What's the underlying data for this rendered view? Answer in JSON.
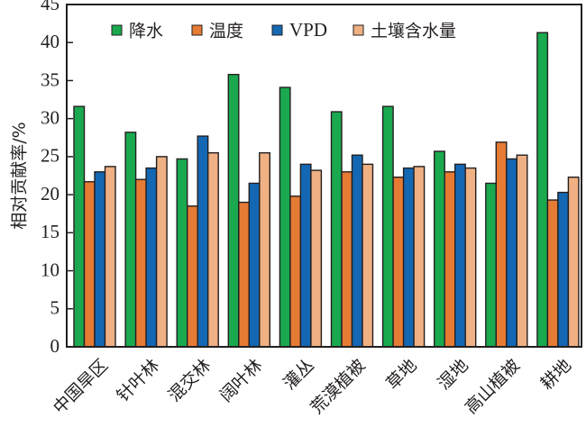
{
  "chart_data": {
    "type": "bar",
    "title": "",
    "xlabel": "",
    "ylabel": "相对贡献率/%",
    "ylim": [
      0,
      45
    ],
    "yticks": [
      0,
      5,
      10,
      15,
      20,
      25,
      30,
      35,
      40,
      45
    ],
    "yticks_labels": [
      "0",
      "5",
      "10",
      "15",
      "20",
      "25",
      "30",
      "35",
      "40",
      "45"
    ],
    "grid": false,
    "legend_position": "top",
    "categories": [
      "中国旱区",
      "针叶林",
      "混交林",
      "阔叶林",
      "灌丛",
      "荒漠植被",
      "草地",
      "湿地",
      "高山植被",
      "耕地"
    ],
    "series": [
      {
        "name": "降水",
        "color": "#1aa94f",
        "values": [
          31.6,
          28.2,
          24.7,
          35.8,
          34.1,
          30.9,
          31.6,
          25.7,
          21.5,
          41.3
        ]
      },
      {
        "name": "温度",
        "color": "#e57b35",
        "values": [
          21.7,
          22.0,
          18.5,
          19.0,
          19.8,
          23.0,
          22.3,
          23.0,
          26.9,
          19.3
        ]
      },
      {
        "name": "VPD",
        "color": "#1467b3",
        "values": [
          23.0,
          23.5,
          27.7,
          21.5,
          24.0,
          25.2,
          23.5,
          24.0,
          24.7,
          20.3
        ]
      },
      {
        "name": "土壤含水量",
        "color": "#efb083",
        "values": [
          23.7,
          25.0,
          25.5,
          25.5,
          23.2,
          24.0,
          23.7,
          23.5,
          25.2,
          22.3
        ]
      }
    ]
  }
}
